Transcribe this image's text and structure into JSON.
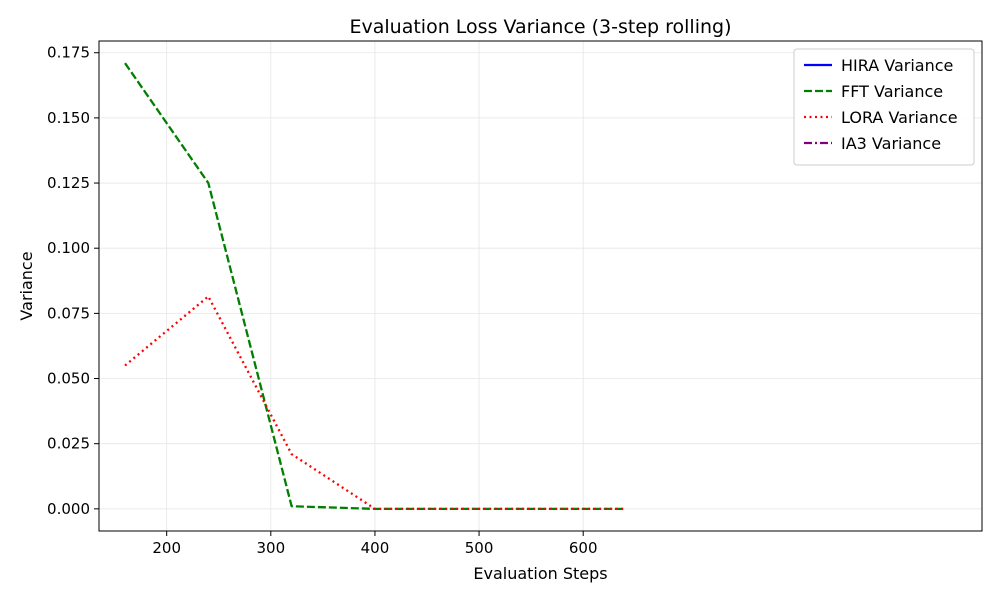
{
  "chart_data": {
    "type": "line",
    "title": "Evaluation Loss Variance (3-step rolling)",
    "xlabel": "Evaluation Steps",
    "ylabel": "Variance",
    "xlim": [
      135,
      983
    ],
    "ylim": [
      -0.0085,
      0.1795
    ],
    "xticks": [
      200,
      300,
      400,
      500,
      600
    ],
    "yticks": [
      0.0,
      0.025,
      0.05,
      0.075,
      0.1,
      0.125,
      0.15,
      0.175
    ],
    "grid": true,
    "legend_position": "top-right",
    "series": [
      {
        "name": "HIRA Variance",
        "color": "#0000ff",
        "dash": "solid",
        "x": [],
        "y": []
      },
      {
        "name": "FFT Variance",
        "color": "#008000",
        "dash": "dashed",
        "x": [
          160,
          240,
          320,
          400,
          480,
          560,
          640
        ],
        "y": [
          0.171,
          0.125,
          0.001,
          0.0,
          0.0,
          0.0,
          0.0
        ]
      },
      {
        "name": "LORA Variance",
        "color": "#ff0000",
        "dash": "dotted",
        "x": [
          160,
          240,
          320,
          400,
          480,
          560,
          640
        ],
        "y": [
          0.055,
          0.0815,
          0.021,
          0.0,
          0.0,
          0.0,
          0.0
        ]
      },
      {
        "name": "IA3 Variance",
        "color": "#800080",
        "dash": "dashdot",
        "x": [],
        "y": []
      }
    ]
  }
}
